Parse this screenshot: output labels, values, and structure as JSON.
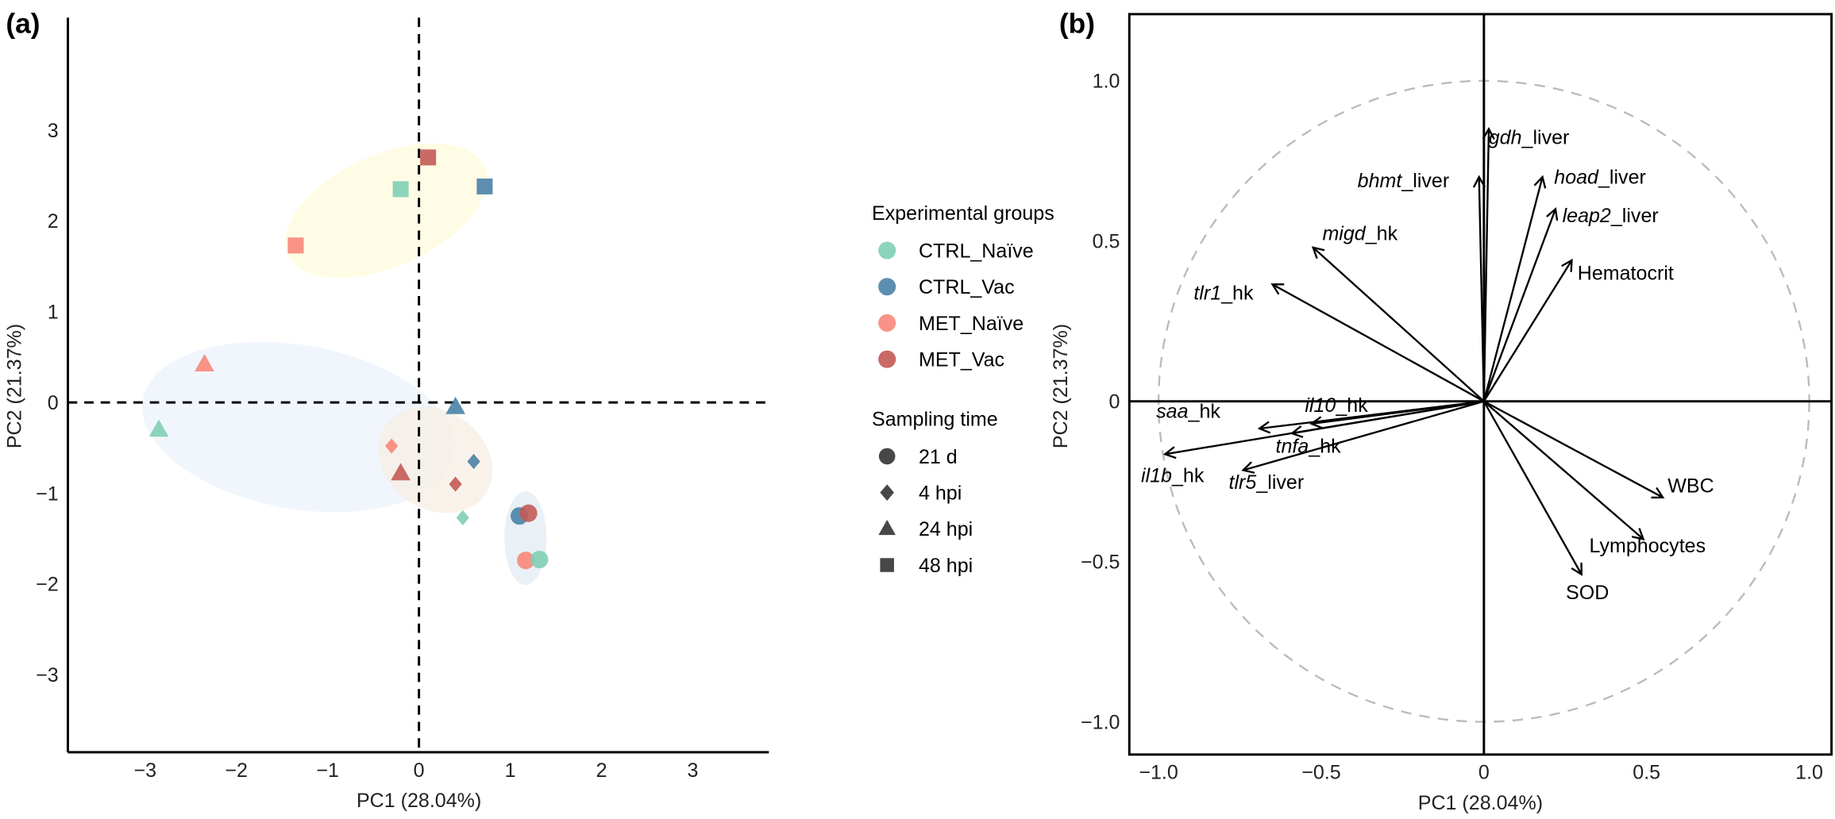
{
  "chart_data": [
    {
      "panel": "(a)",
      "type": "scatter",
      "xlabel": "PC1 (28.04%)",
      "ylabel": "PC2 (21.37%)",
      "xlim": [
        -3.85,
        3.75
      ],
      "ylim": [
        -3.85,
        4.3
      ],
      "xticks": [
        "-3",
        "-2",
        "-1",
        "0",
        "1",
        "2",
        "3"
      ],
      "yticks": [
        "-3",
        "-2",
        "-1",
        "0",
        "1",
        "2",
        "3"
      ],
      "grid": false,
      "legend_placement": "right",
      "legend_groups_title": "Experimental groups",
      "legend_time_title": "Sampling time",
      "groups": [
        {
          "name": "CTRL_Naïve",
          "color": "#7fcfb4"
        },
        {
          "name": "CTRL_Vac",
          "color": "#4a82a6"
        },
        {
          "name": "MET_Naïve",
          "color": "#f8877a"
        },
        {
          "name": "MET_Vac",
          "color": "#c35a55"
        }
      ],
      "times": [
        {
          "name": "21 d",
          "shape": "circle"
        },
        {
          "name": "4 hpi",
          "shape": "diamond"
        },
        {
          "name": "24 hpi",
          "shape": "triangle"
        },
        {
          "name": "48 hpi",
          "shape": "square"
        }
      ],
      "points": [
        {
          "group": 3,
          "time": 3,
          "x": 0.1,
          "y": 2.7
        },
        {
          "group": 0,
          "time": 3,
          "x": -0.2,
          "y": 2.35
        },
        {
          "group": 1,
          "time": 3,
          "x": 0.72,
          "y": 2.38
        },
        {
          "group": 2,
          "time": 3,
          "x": -1.35,
          "y": 1.73
        },
        {
          "group": 2,
          "time": 2,
          "x": -2.35,
          "y": 0.42
        },
        {
          "group": 0,
          "time": 2,
          "x": -2.85,
          "y": -0.3
        },
        {
          "group": 1,
          "time": 2,
          "x": 0.4,
          "y": -0.05
        },
        {
          "group": 3,
          "time": 2,
          "x": -0.2,
          "y": -0.78
        },
        {
          "group": 2,
          "time": 1,
          "x": -0.3,
          "y": -0.48
        },
        {
          "group": 1,
          "time": 1,
          "x": 0.6,
          "y": -0.65
        },
        {
          "group": 3,
          "time": 1,
          "x": 0.4,
          "y": -0.9
        },
        {
          "group": 0,
          "time": 1,
          "x": 0.48,
          "y": -1.27
        },
        {
          "group": 1,
          "time": 0,
          "x": 1.1,
          "y": -1.25
        },
        {
          "group": 3,
          "time": 0,
          "x": 1.2,
          "y": -1.22
        },
        {
          "group": 2,
          "time": 0,
          "x": 1.17,
          "y": -1.74
        },
        {
          "group": 0,
          "time": 0,
          "x": 1.32,
          "y": -1.73
        }
      ]
    },
    {
      "panel": "(b)",
      "type": "biplot-loadings",
      "xlabel": "PC1 (28.04%)",
      "ylabel": "PC2 (21.37%)",
      "xlim": [
        -1.1,
        1.1
      ],
      "ylim": [
        -1.1,
        1.2
      ],
      "xticks": [
        "-1.0",
        "-0.5",
        "0",
        "0.5",
        "1.0"
      ],
      "yticks": [
        "-1.0",
        "-0.5",
        "0",
        "0.5",
        "1.0"
      ],
      "circle_radius": 1.0,
      "vectors": [
        {
          "gene": "gdh",
          "suffix": "_liver",
          "x": 0.015,
          "y": 0.85
        },
        {
          "gene": "bhmt",
          "suffix": "_liver",
          "x": -0.015,
          "y": 0.7
        },
        {
          "gene": "hoad",
          "suffix": "_liver",
          "x": 0.18,
          "y": 0.7
        },
        {
          "gene": "leap2",
          "suffix": "_liver",
          "x": 0.22,
          "y": 0.6
        },
        {
          "gene": "",
          "suffix": "Hematocrit",
          "x": 0.27,
          "y": 0.44
        },
        {
          "gene": "migd",
          "suffix": "_hk",
          "x": -0.525,
          "y": 0.48
        },
        {
          "gene": "tlr1",
          "suffix": "_hk",
          "x": -0.65,
          "y": 0.365
        },
        {
          "gene": "il10",
          "suffix": "_hk",
          "x": -0.53,
          "y": -0.07
        },
        {
          "gene": "saa",
          "suffix": "_hk",
          "x": -0.69,
          "y": -0.085
        },
        {
          "gene": "tnfa",
          "suffix": "_hk",
          "x": -0.59,
          "y": -0.1
        },
        {
          "gene": "il1b",
          "suffix": "_hk",
          "x": -0.98,
          "y": -0.165
        },
        {
          "gene": "tlr5",
          "suffix": "_liver",
          "x": -0.74,
          "y": -0.215
        },
        {
          "gene": "",
          "suffix": "WBC",
          "x": 0.55,
          "y": -0.3
        },
        {
          "gene": "",
          "suffix": "Lymphocytes",
          "x": 0.49,
          "y": -0.43
        },
        {
          "gene": "",
          "suffix": "SOD",
          "x": 0.3,
          "y": -0.54
        }
      ]
    }
  ]
}
